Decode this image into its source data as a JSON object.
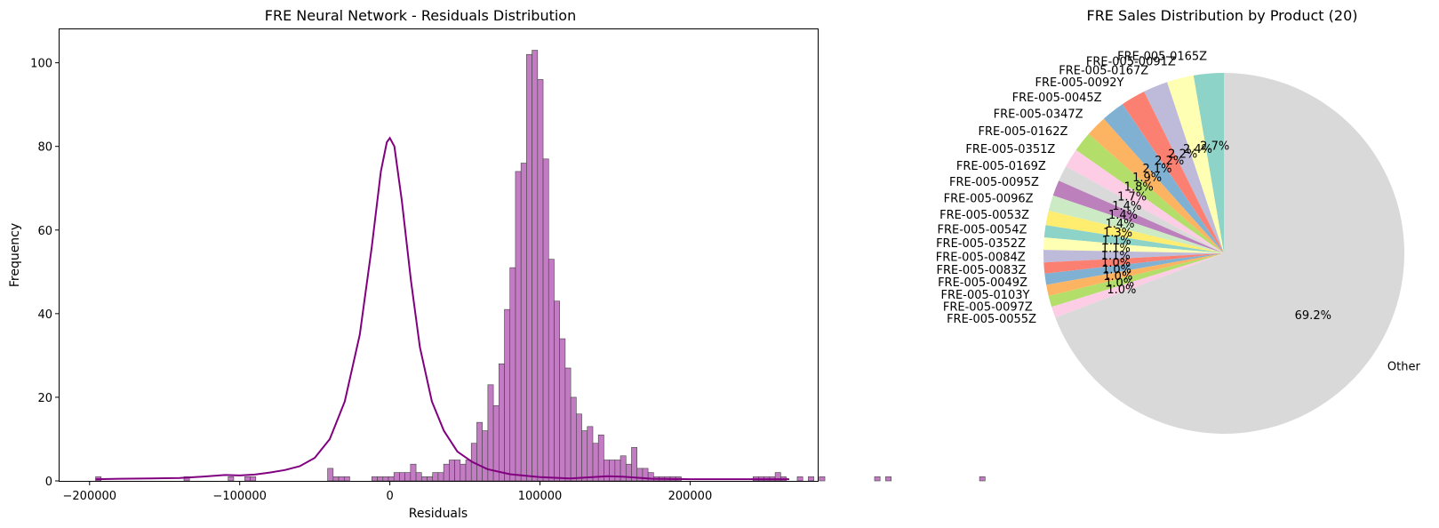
{
  "chart_data": [
    {
      "type": "histogram",
      "title": "FRE Neural Network - Residuals Distribution",
      "xlabel": "Residuals",
      "ylabel": "Frequency",
      "xlim": [
        -220000,
        285000
      ],
      "ylim": [
        0,
        108
      ],
      "xticks": [
        -200000,
        -100000,
        0,
        100000,
        200000
      ],
      "xtick_labels": [
        "−200000",
        "−100000",
        "0",
        "100000",
        "200000"
      ],
      "yticks": [
        0,
        20,
        40,
        60,
        80,
        100
      ],
      "ytick_labels": [
        "0",
        "20",
        "40",
        "60",
        "80",
        "100"
      ],
      "bin_start": -196000,
      "bin_width": 3680,
      "counts": [
        1,
        0,
        0,
        0,
        0,
        0,
        0,
        0,
        0,
        0,
        0,
        0,
        0,
        0,
        0,
        0,
        1,
        0,
        0,
        0,
        0,
        0,
        0,
        0,
        1,
        0,
        0,
        1,
        1,
        0,
        0,
        0,
        0,
        0,
        0,
        0,
        0,
        0,
        0,
        0,
        0,
        0,
        3,
        1,
        1,
        1,
        0,
        0,
        0,
        0,
        1,
        1,
        1,
        1,
        2,
        2,
        2,
        4,
        2,
        1,
        1,
        2,
        2,
        4,
        5,
        5,
        4,
        5,
        9,
        14,
        12,
        23,
        18,
        28,
        41,
        51,
        74,
        76,
        102,
        103,
        96,
        77,
        53,
        43,
        34,
        27,
        20,
        16,
        12,
        13,
        9,
        11,
        5,
        5,
        5,
        6,
        4,
        8,
        3,
        3,
        2,
        1,
        1,
        1,
        1,
        1,
        0,
        0,
        0,
        0,
        0,
        0,
        0,
        0,
        0,
        0,
        0,
        0,
        0,
        1,
        1,
        1,
        1,
        2,
        1,
        0,
        0,
        1,
        0,
        1,
        0,
        1,
        0,
        0,
        0,
        0,
        0,
        0,
        0,
        0,
        0,
        1,
        0,
        1,
        0,
        0,
        0,
        0,
        0,
        0,
        0,
        0,
        0,
        0,
        0,
        0,
        0,
        0,
        0,
        0,
        1
      ],
      "bar_color": "#b965b9",
      "bar_edge_color": "#444444",
      "kde": {
        "color": "#800080",
        "points": [
          [
            -196000,
            0.4
          ],
          [
            -180000,
            0.5
          ],
          [
            -160000,
            0.6
          ],
          [
            -140000,
            0.7
          ],
          [
            -125000,
            1.0
          ],
          [
            -110000,
            1.4
          ],
          [
            -100000,
            1.3
          ],
          [
            -90000,
            1.5
          ],
          [
            -80000,
            2.0
          ],
          [
            -70000,
            2.6
          ],
          [
            -60000,
            3.5
          ],
          [
            -50000,
            5.5
          ],
          [
            -40000,
            10
          ],
          [
            -30000,
            19
          ],
          [
            -20000,
            35
          ],
          [
            -12000,
            56
          ],
          [
            -6000,
            74
          ],
          [
            -2000,
            81
          ],
          [
            0,
            82
          ],
          [
            3000,
            80
          ],
          [
            8000,
            67
          ],
          [
            14000,
            48
          ],
          [
            20000,
            32
          ],
          [
            28000,
            19
          ],
          [
            36000,
            12
          ],
          [
            45000,
            7
          ],
          [
            55000,
            4.5
          ],
          [
            65000,
            2.8
          ],
          [
            80000,
            1.6
          ],
          [
            100000,
            0.9
          ],
          [
            120000,
            0.6
          ],
          [
            145000,
            1.1
          ],
          [
            155000,
            1.0
          ],
          [
            175000,
            0.5
          ],
          [
            200000,
            0.4
          ],
          [
            230000,
            0.4
          ],
          [
            266000,
            0.4
          ]
        ]
      }
    },
    {
      "type": "pie",
      "title": "FRE Sales Distribution by Product (20)",
      "start_angle": 90,
      "direction": "counterclockwise",
      "slices": [
        {
          "label": "FRE-005-0165Z",
          "value": 2.7,
          "pct_label": "2.7%",
          "color": "#8dd3c7"
        },
        {
          "label": "FRE-005-0091Z",
          "value": 2.4,
          "pct_label": "2.4%",
          "color": "#ffffb3"
        },
        {
          "label": "FRE-005-0167Z",
          "value": 2.2,
          "pct_label": "2.2%",
          "color": "#bebada"
        },
        {
          "label": "FRE-005-0092Y",
          "value": 2.2,
          "pct_label": "2.2%",
          "color": "#fb8072"
        },
        {
          "label": "FRE-005-0045Z",
          "value": 2.1,
          "pct_label": "2.1%",
          "color": "#80b1d3"
        },
        {
          "label": "FRE-005-0347Z",
          "value": 1.9,
          "pct_label": "1.9%",
          "color": "#fdb462"
        },
        {
          "label": "FRE-005-0162Z",
          "value": 1.8,
          "pct_label": "1.8%",
          "color": "#b3de69"
        },
        {
          "label": "FRE-005-0351Z",
          "value": 1.7,
          "pct_label": "1.7%",
          "color": "#fccde5"
        },
        {
          "label": "FRE-005-0169Z",
          "value": 1.4,
          "pct_label": "1.4%",
          "color": "#d9d9d9"
        },
        {
          "label": "FRE-005-0095Z",
          "value": 1.4,
          "pct_label": "1.4%",
          "color": "#bc80bd"
        },
        {
          "label": "FRE-005-0096Z",
          "value": 1.4,
          "pct_label": "1.4%",
          "color": "#ccebc5"
        },
        {
          "label": "FRE-005-0053Z",
          "value": 1.3,
          "pct_label": "1.3%",
          "color": "#ffed6f"
        },
        {
          "label": "FRE-005-0054Z",
          "value": 1.1,
          "pct_label": "1.1%",
          "color": "#8dd3c7"
        },
        {
          "label": "FRE-005-0352Z",
          "value": 1.1,
          "pct_label": "1.1%",
          "color": "#ffffb3"
        },
        {
          "label": "FRE-005-0084Z",
          "value": 1.1,
          "pct_label": "1.1%",
          "color": "#bebada"
        },
        {
          "label": "FRE-005-0083Z",
          "value": 1.0,
          "pct_label": "1.0%",
          "color": "#fb8072"
        },
        {
          "label": "FRE-005-0049Z",
          "value": 1.0,
          "pct_label": "1.0%",
          "color": "#80b1d3"
        },
        {
          "label": "FRE-005-0103Y",
          "value": 1.0,
          "pct_label": "1.0%",
          "color": "#fdb462"
        },
        {
          "label": "FRE-005-0097Z",
          "value": 1.0,
          "pct_label": "1.0%",
          "color": "#b3de69"
        },
        {
          "label": "FRE-005-0055Z",
          "value": 1.0,
          "pct_label": "1.0%",
          "color": "#fccde5"
        },
        {
          "label": "Other",
          "value": 69.2,
          "pct_label": "69.2%",
          "color": "#d9d9d9"
        }
      ]
    }
  ]
}
